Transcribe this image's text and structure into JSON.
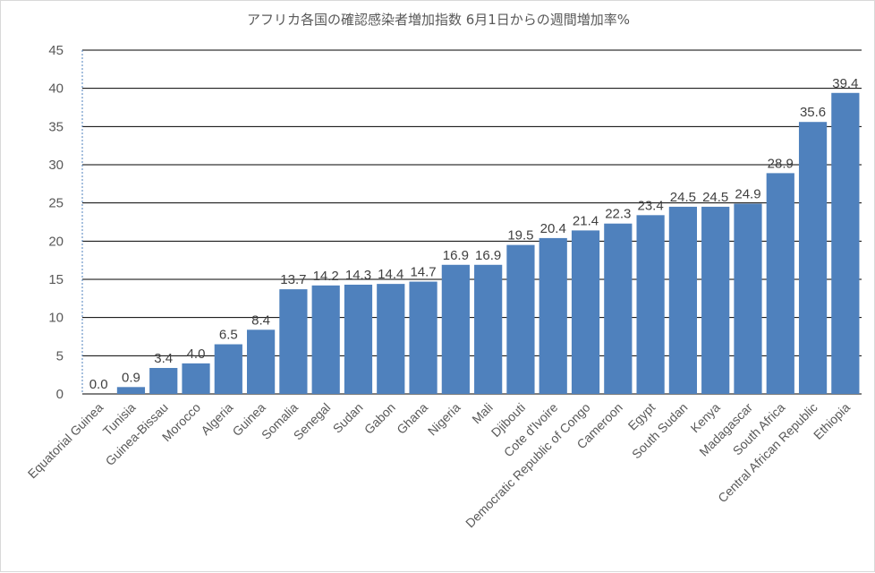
{
  "chart_data": {
    "type": "bar",
    "title": "アフリカ各国の確認感染者増加指数 6月1日からの週間増加率%",
    "xlabel": "",
    "ylabel": "",
    "ylim": [
      0,
      45
    ],
    "yticks": [
      0,
      5,
      10,
      15,
      20,
      25,
      30,
      35,
      40,
      45
    ],
    "grid": true,
    "legend": "none",
    "bar_color": "#4f81bd",
    "categories": [
      "Equatorial Guinea",
      "Tunisia",
      "Guinea-Bissau",
      "Morocco",
      "Algeria",
      "Guinea",
      "Somalia",
      "Senegal",
      "Sudan",
      "Gabon",
      "Ghana",
      "Nigeria",
      "Mali",
      "Djibouti",
      "Cote d'Ivoire",
      "Democratic Republic of Congo",
      "Cameroon",
      "Egypt",
      "South Sudan",
      "Kenya",
      "Madagascar",
      "South Africa",
      "Central African Republic",
      "Ethiopia"
    ],
    "values": [
      0.0,
      0.9,
      3.4,
      4.0,
      6.5,
      8.4,
      13.7,
      14.2,
      14.3,
      14.4,
      14.7,
      16.9,
      16.9,
      19.5,
      20.4,
      21.4,
      22.3,
      23.4,
      24.5,
      24.5,
      24.9,
      28.9,
      35.6,
      39.4
    ],
    "value_labels": [
      "0.0",
      "0.9",
      "3.4",
      "4.0",
      "6.5",
      "8.4",
      "13.7",
      "14.2",
      "14.3",
      "14.4",
      "14.7",
      "16.9",
      "16.9",
      "19.5",
      "20.4",
      "21.4",
      "22.3",
      "23.4",
      "24.5",
      "24.5",
      "24.9",
      "28.9",
      "35.6",
      "39.4"
    ]
  }
}
